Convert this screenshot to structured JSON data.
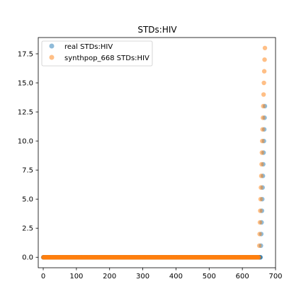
{
  "chart_data": {
    "type": "scatter",
    "title": "STDs:HIV",
    "xlabel": "",
    "ylabel": "",
    "xlim": [
      -15,
      700
    ],
    "ylim": [
      -0.9,
      18.9
    ],
    "xticks": [
      0,
      100,
      200,
      300,
      400,
      500,
      600,
      700
    ],
    "xtick_labels": [
      "0",
      "100",
      "200",
      "300",
      "400",
      "500",
      "600",
      "700"
    ],
    "yticks": [
      0.0,
      2.5,
      5.0,
      7.5,
      10.0,
      12.5,
      15.0,
      17.5
    ],
    "ytick_labels": [
      "0.0",
      "2.5",
      "5.0",
      "7.5",
      "10.0",
      "12.5",
      "15.0",
      "17.5"
    ],
    "legend_position": "top-left",
    "series": [
      {
        "name": "real STDs:HIV",
        "color": "#1f77b4",
        "zero_run": {
          "x_start": 0,
          "x_end": 654,
          "y": 0
        },
        "points": [
          {
            "x": 655,
            "y": 0
          },
          {
            "x": 656,
            "y": 1
          },
          {
            "x": 657,
            "y": 2
          },
          {
            "x": 658,
            "y": 3
          },
          {
            "x": 659,
            "y": 4
          },
          {
            "x": 660,
            "y": 5
          },
          {
            "x": 661,
            "y": 6
          },
          {
            "x": 662,
            "y": 7
          },
          {
            "x": 663,
            "y": 8
          },
          {
            "x": 664,
            "y": 9
          },
          {
            "x": 665,
            "y": 10
          },
          {
            "x": 666,
            "y": 11
          },
          {
            "x": 667,
            "y": 12
          },
          {
            "x": 668,
            "y": 13
          }
        ]
      },
      {
        "name": "synthpop_668 STDs:HIV",
        "color": "#ff7f0e",
        "zero_run": {
          "x_start": 0,
          "x_end": 650,
          "y": 0
        },
        "points": [
          {
            "x": 651,
            "y": 1
          },
          {
            "x": 652,
            "y": 2
          },
          {
            "x": 653,
            "y": 3
          },
          {
            "x": 654,
            "y": 4
          },
          {
            "x": 655,
            "y": 5
          },
          {
            "x": 656,
            "y": 6
          },
          {
            "x": 657,
            "y": 7
          },
          {
            "x": 658,
            "y": 8
          },
          {
            "x": 659,
            "y": 9
          },
          {
            "x": 660,
            "y": 10
          },
          {
            "x": 661,
            "y": 11
          },
          {
            "x": 662,
            "y": 12
          },
          {
            "x": 663,
            "y": 13
          },
          {
            "x": 664,
            "y": 14
          },
          {
            "x": 665,
            "y": 15
          },
          {
            "x": 666,
            "y": 16
          },
          {
            "x": 667,
            "y": 17
          },
          {
            "x": 668,
            "y": 18
          }
        ]
      }
    ]
  }
}
